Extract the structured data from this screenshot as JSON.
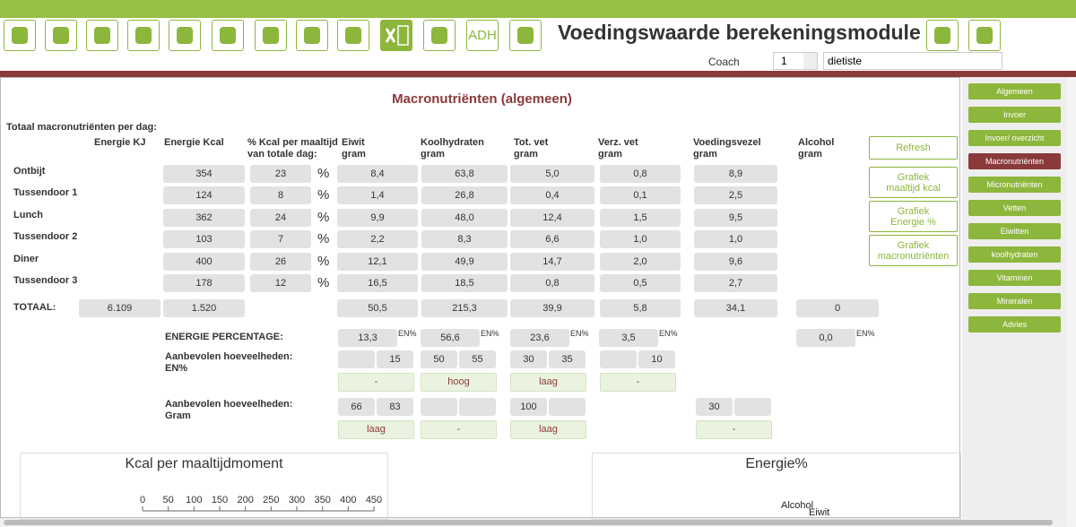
{
  "toolbar": {
    "adh": "ADH"
  },
  "header": {
    "title": "Voedingswaarde berekeningsmodule",
    "coach_label": "Coach",
    "coach_value": "1",
    "user": "dietiste"
  },
  "panel": {
    "title": "Macronutriënten (algemeen)",
    "subtitle": "Totaal macronutriënten per dag:",
    "columns": [
      [
        "Energie KJ"
      ],
      [
        "Energie Kcal"
      ],
      [
        "% Kcal per maaltijd",
        "van totale dag:"
      ],
      [
        "Eiwit",
        "gram"
      ],
      [
        "Koolhydraten",
        "gram"
      ],
      [
        "Tot. vet",
        "gram"
      ],
      [
        "Verz. vet",
        "gram"
      ],
      [
        "Voedingsvezel",
        "gram"
      ],
      [
        "Alcohol",
        "gram"
      ]
    ],
    "percent_sign": "%",
    "rows": [
      {
        "label": "Ontbijt",
        "values": [
          "354",
          "23",
          "8,4",
          "63,8",
          "5,0",
          "0,8",
          "8,9"
        ]
      },
      {
        "label": "Tussendoor 1",
        "values": [
          "124",
          "8",
          "1,4",
          "26,8",
          "0,4",
          "0,1",
          "2,5"
        ]
      },
      {
        "label": "Lunch",
        "values": [
          "362",
          "24",
          "9,9",
          "48,0",
          "12,4",
          "1,5",
          "9,5"
        ]
      },
      {
        "label": "Tussendoor 2",
        "values": [
          "103",
          "7",
          "2,2",
          "8,3",
          "6,6",
          "1,0",
          "1,0"
        ]
      },
      {
        "label": "Diner",
        "values": [
          "400",
          "26",
          "12,1",
          "49,9",
          "14,7",
          "2,0",
          "9,6"
        ]
      },
      {
        "label": "Tussendoor 3",
        "values": [
          "178",
          "12",
          "16,5",
          "18,5",
          "0,8",
          "0,5",
          "2,7"
        ]
      }
    ],
    "total": {
      "label": "TOTAAL:",
      "values": [
        "6.109",
        "1.520",
        "50,5",
        "215,3",
        "39,9",
        "5,8",
        "34,1",
        "0"
      ]
    },
    "energy_percentage": {
      "label": "ENERGIE PERCENTAGE:",
      "unit": "EN%",
      "values": [
        "13,3",
        "56,6",
        "23,6",
        "3,5",
        "0,0"
      ]
    },
    "advised_en": {
      "label": [
        "Aanbevolen hoeveelheden:",
        "EN%"
      ],
      "pairs": [
        [
          null,
          "15"
        ],
        [
          "50",
          "55"
        ],
        [
          "30",
          "35"
        ],
        [
          null,
          "10"
        ]
      ],
      "status": [
        "-",
        "hoog",
        "laag",
        "-"
      ]
    },
    "advised_gram": {
      "label": [
        "Aanbevolen hoeveelheden:",
        "Gram"
      ],
      "pairs": [
        [
          "66",
          "83"
        ],
        [
          null,
          null
        ],
        [
          "100",
          null
        ],
        [
          "30",
          null
        ]
      ],
      "status": [
        "laag",
        "-",
        "laag",
        "-"
      ]
    },
    "buttons": [
      [
        "Refresh"
      ],
      [
        "Grafiek",
        "maaltijd kcal"
      ],
      [
        "Grafiek",
        "Energie %"
      ],
      [
        "Grafiek",
        "macronutriënten"
      ]
    ]
  },
  "nav": {
    "items": [
      "Algemeen",
      "Invoer",
      "Invoer/ overzicht",
      "Macronutriënten",
      "Micronutriënten",
      "Vetten",
      "Eiwitten",
      "koolhydraten",
      "Vitaminen",
      "Mineralen",
      "Advies"
    ],
    "active": 3
  },
  "charts": [
    {
      "type": "bar",
      "title": "Kcal per maaltijdmoment",
      "xlim": [
        0,
        450
      ],
      "xticks": [
        0,
        50,
        100,
        150,
        200,
        250,
        300,
        350,
        400,
        450
      ]
    },
    {
      "type": "pie",
      "title": "Energie%",
      "labels": [
        "Alcohol",
        "Eiwit"
      ]
    }
  ]
}
